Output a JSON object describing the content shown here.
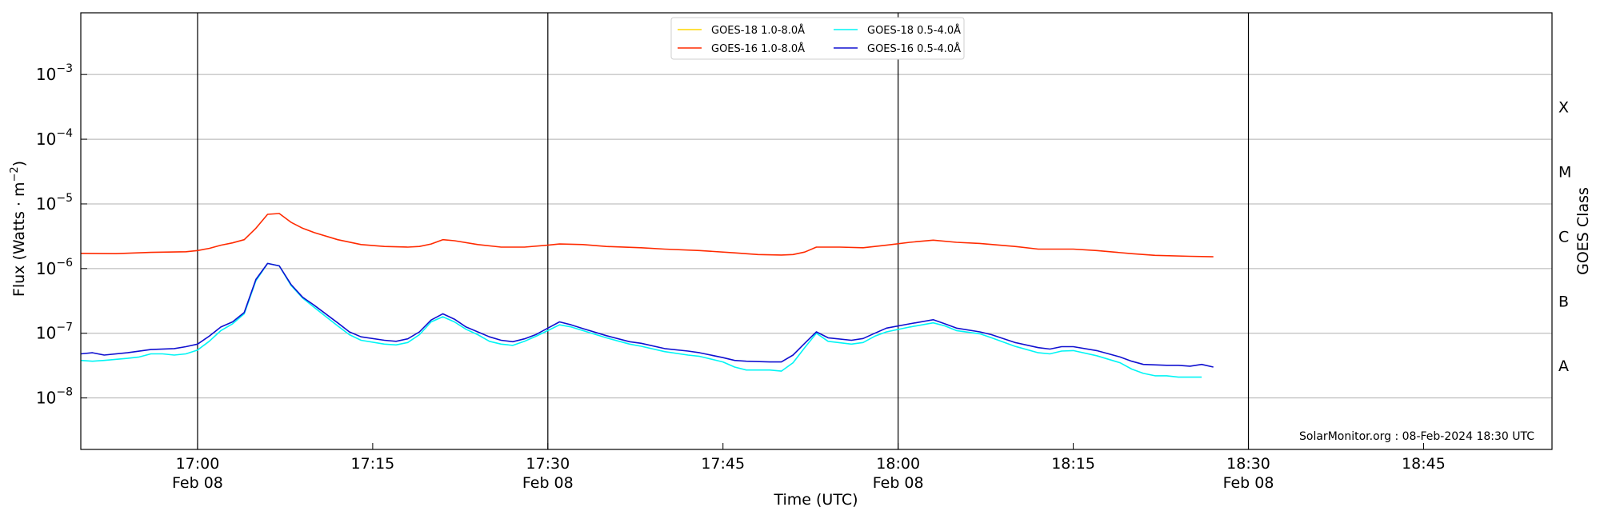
{
  "chart_data": {
    "type": "line",
    "title": "",
    "xlabel": "Time (UTC)",
    "ylabel": "Flux (Watts · m⁻²)",
    "y2label": "GOES Class",
    "yscale": "log",
    "ylim": [
      1.6e-09,
      0.009
    ],
    "xlim": [
      "2024-02-08 16:50",
      "2024-02-08 18:56"
    ],
    "grid": "horizontal",
    "legend_position": "top-center",
    "x_ticks": [
      {
        "time": "2024-02-08 17:00",
        "label": "17:00",
        "date": "Feb 08"
      },
      {
        "time": "2024-02-08 17:15",
        "label": "17:15",
        "date": ""
      },
      {
        "time": "2024-02-08 17:30",
        "label": "17:30",
        "date": "Feb 08"
      },
      {
        "time": "2024-02-08 17:45",
        "label": "17:45",
        "date": ""
      },
      {
        "time": "2024-02-08 18:00",
        "label": "18:00",
        "date": "Feb 08"
      },
      {
        "time": "2024-02-08 18:15",
        "label": "18:15",
        "date": ""
      },
      {
        "time": "2024-02-08 18:30",
        "label": "18:30",
        "date": "Feb 08"
      },
      {
        "time": "2024-02-08 18:45",
        "label": "18:45",
        "date": ""
      }
    ],
    "vertical_lines": [
      "2024-02-08 17:00",
      "2024-02-08 17:30",
      "2024-02-08 18:00",
      "2024-02-08 18:30"
    ],
    "y_ticks": [
      {
        "value": 1e-08,
        "base": "10",
        "exp": "−8"
      },
      {
        "value": 1e-07,
        "base": "10",
        "exp": "−7"
      },
      {
        "value": 1e-06,
        "base": "10",
        "exp": "−6"
      },
      {
        "value": 1e-05,
        "base": "10",
        "exp": "−5"
      },
      {
        "value": 0.0001,
        "base": "10",
        "exp": "−4"
      },
      {
        "value": 0.001,
        "base": "10",
        "exp": "−3"
      }
    ],
    "class_labels": [
      {
        "label": "A",
        "value": 3.16e-08
      },
      {
        "label": "B",
        "value": 3.16e-07
      },
      {
        "label": "C",
        "value": 3.16e-06
      },
      {
        "label": "M",
        "value": 3.16e-05
      },
      {
        "label": "X",
        "value": 0.000316
      }
    ],
    "annotation": "SolarMonitor.org : 08-Feb-2024 18:30 UTC",
    "series": [
      {
        "name": "GOES-18 1.0-8.0Å",
        "color": "#ffd700",
        "points": []
      },
      {
        "name": "GOES-16 1.0-8.0Å",
        "color": "#ff2a00",
        "points": [
          [
            "2024-02-08 16:50",
            1.72e-06
          ],
          [
            "2024-02-08 16:53",
            1.7e-06
          ],
          [
            "2024-02-08 16:56",
            1.78e-06
          ],
          [
            "2024-02-08 16:59",
            1.82e-06
          ],
          [
            "2024-02-08 17:00",
            1.9e-06
          ],
          [
            "2024-02-08 17:01",
            2.05e-06
          ],
          [
            "2024-02-08 17:02",
            2.3e-06
          ],
          [
            "2024-02-08 17:03",
            2.5e-06
          ],
          [
            "2024-02-08 17:04",
            2.8e-06
          ],
          [
            "2024-02-08 17:05",
            4.2e-06
          ],
          [
            "2024-02-08 17:06",
            6.9e-06
          ],
          [
            "2024-02-08 17:07",
            7.1e-06
          ],
          [
            "2024-02-08 17:08",
            5.2e-06
          ],
          [
            "2024-02-08 17:09",
            4.2e-06
          ],
          [
            "2024-02-08 17:10",
            3.6e-06
          ],
          [
            "2024-02-08 17:12",
            2.8e-06
          ],
          [
            "2024-02-08 17:14",
            2.35e-06
          ],
          [
            "2024-02-08 17:16",
            2.2e-06
          ],
          [
            "2024-02-08 17:18",
            2.15e-06
          ],
          [
            "2024-02-08 17:19",
            2.2e-06
          ],
          [
            "2024-02-08 17:20",
            2.4e-06
          ],
          [
            "2024-02-08 17:21",
            2.8e-06
          ],
          [
            "2024-02-08 17:22",
            2.7e-06
          ],
          [
            "2024-02-08 17:24",
            2.35e-06
          ],
          [
            "2024-02-08 17:26",
            2.15e-06
          ],
          [
            "2024-02-08 17:28",
            2.15e-06
          ],
          [
            "2024-02-08 17:30",
            2.3e-06
          ],
          [
            "2024-02-08 17:31",
            2.4e-06
          ],
          [
            "2024-02-08 17:33",
            2.35e-06
          ],
          [
            "2024-02-08 17:35",
            2.2e-06
          ],
          [
            "2024-02-08 17:38",
            2.1e-06
          ],
          [
            "2024-02-08 17:40",
            2e-06
          ],
          [
            "2024-02-08 17:43",
            1.9e-06
          ],
          [
            "2024-02-08 17:46",
            1.75e-06
          ],
          [
            "2024-02-08 17:48",
            1.65e-06
          ],
          [
            "2024-02-08 17:50",
            1.62e-06
          ],
          [
            "2024-02-08 17:51",
            1.65e-06
          ],
          [
            "2024-02-08 17:52",
            1.8e-06
          ],
          [
            "2024-02-08 17:53",
            2.15e-06
          ],
          [
            "2024-02-08 17:55",
            2.15e-06
          ],
          [
            "2024-02-08 17:57",
            2.1e-06
          ],
          [
            "2024-02-08 17:59",
            2.3e-06
          ],
          [
            "2024-02-08 18:01",
            2.55e-06
          ],
          [
            "2024-02-08 18:03",
            2.75e-06
          ],
          [
            "2024-02-08 18:05",
            2.55e-06
          ],
          [
            "2024-02-08 18:07",
            2.45e-06
          ],
          [
            "2024-02-08 18:10",
            2.2e-06
          ],
          [
            "2024-02-08 18:12",
            2e-06
          ],
          [
            "2024-02-08 18:15",
            2e-06
          ],
          [
            "2024-02-08 18:17",
            1.9e-06
          ],
          [
            "2024-02-08 18:20",
            1.7e-06
          ],
          [
            "2024-02-08 18:22",
            1.6e-06
          ],
          [
            "2024-02-08 18:25",
            1.55e-06
          ],
          [
            "2024-02-08 18:27",
            1.52e-06
          ]
        ]
      },
      {
        "name": "GOES-18 0.5-4.0Å",
        "color": "#00f5f5",
        "points": [
          [
            "2024-02-08 16:50",
            3.8e-08
          ],
          [
            "2024-02-08 16:51",
            3.7e-08
          ],
          [
            "2024-02-08 16:52",
            3.8e-08
          ],
          [
            "2024-02-08 16:54",
            4.1e-08
          ],
          [
            "2024-02-08 16:55",
            4.3e-08
          ],
          [
            "2024-02-08 16:56",
            4.8e-08
          ],
          [
            "2024-02-08 16:57",
            4.8e-08
          ],
          [
            "2024-02-08 16:58",
            4.6e-08
          ],
          [
            "2024-02-08 16:59",
            4.8e-08
          ],
          [
            "2024-02-08 17:00",
            5.5e-08
          ],
          [
            "2024-02-08 17:01",
            7.5e-08
          ],
          [
            "2024-02-08 17:02",
            1.1e-07
          ],
          [
            "2024-02-08 17:03",
            1.4e-07
          ],
          [
            "2024-02-08 17:04",
            2e-07
          ],
          [
            "2024-02-08 17:05",
            6.5e-07
          ],
          [
            "2024-02-08 17:06",
            1.2e-06
          ],
          [
            "2024-02-08 17:07",
            1.1e-06
          ],
          [
            "2024-02-08 17:08",
            5.5e-07
          ],
          [
            "2024-02-08 17:09",
            3.5e-07
          ],
          [
            "2024-02-08 17:10",
            2.5e-07
          ],
          [
            "2024-02-08 17:12",
            1.3e-07
          ],
          [
            "2024-02-08 17:13",
            9.5e-08
          ],
          [
            "2024-02-08 17:14",
            7.8e-08
          ],
          [
            "2024-02-08 17:16",
            6.8e-08
          ],
          [
            "2024-02-08 17:17",
            6.6e-08
          ],
          [
            "2024-02-08 17:18",
            7.2e-08
          ],
          [
            "2024-02-08 17:19",
            9.5e-08
          ],
          [
            "2024-02-08 17:20",
            1.5e-07
          ],
          [
            "2024-02-08 17:21",
            1.8e-07
          ],
          [
            "2024-02-08 17:22",
            1.5e-07
          ],
          [
            "2024-02-08 17:23",
            1.15e-07
          ],
          [
            "2024-02-08 17:24",
            9.5e-08
          ],
          [
            "2024-02-08 17:25",
            7.5e-08
          ],
          [
            "2024-02-08 17:26",
            6.8e-08
          ],
          [
            "2024-02-08 17:27",
            6.5e-08
          ],
          [
            "2024-02-08 17:28",
            7.5e-08
          ],
          [
            "2024-02-08 17:29",
            9e-08
          ],
          [
            "2024-02-08 17:30",
            1.1e-07
          ],
          [
            "2024-02-08 17:31",
            1.35e-07
          ],
          [
            "2024-02-08 17:32",
            1.25e-07
          ],
          [
            "2024-02-08 17:33",
            1.1e-07
          ],
          [
            "2024-02-08 17:35",
            8.5e-08
          ],
          [
            "2024-02-08 17:37",
            6.8e-08
          ],
          [
            "2024-02-08 17:38",
            6.3e-08
          ],
          [
            "2024-02-08 17:40",
            5.2e-08
          ],
          [
            "2024-02-08 17:42",
            4.6e-08
          ],
          [
            "2024-02-08 17:43",
            4.4e-08
          ],
          [
            "2024-02-08 17:45",
            3.6e-08
          ],
          [
            "2024-02-08 17:46",
            3e-08
          ],
          [
            "2024-02-08 17:47",
            2.7e-08
          ],
          [
            "2024-02-08 17:49",
            2.7e-08
          ],
          [
            "2024-02-08 17:50",
            2.6e-08
          ],
          [
            "2024-02-08 17:51",
            3.5e-08
          ],
          [
            "2024-02-08 17:52",
            6e-08
          ],
          [
            "2024-02-08 17:53",
            1e-07
          ],
          [
            "2024-02-08 17:54",
            7.5e-08
          ],
          [
            "2024-02-08 17:56",
            6.8e-08
          ],
          [
            "2024-02-08 17:57",
            7.2e-08
          ],
          [
            "2024-02-08 17:58",
            9e-08
          ],
          [
            "2024-02-08 17:59",
            1.05e-07
          ],
          [
            "2024-02-08 18:01",
            1.25e-07
          ],
          [
            "2024-02-08 18:03",
            1.45e-07
          ],
          [
            "2024-02-08 18:04",
            1.3e-07
          ],
          [
            "2024-02-08 18:05",
            1.1e-07
          ],
          [
            "2024-02-08 18:07",
            9.8e-08
          ],
          [
            "2024-02-08 18:08",
            8.5e-08
          ],
          [
            "2024-02-08 18:10",
            6.3e-08
          ],
          [
            "2024-02-08 18:12",
            5e-08
          ],
          [
            "2024-02-08 18:13",
            4.8e-08
          ],
          [
            "2024-02-08 18:14",
            5.3e-08
          ],
          [
            "2024-02-08 18:15",
            5.4e-08
          ],
          [
            "2024-02-08 18:17",
            4.5e-08
          ],
          [
            "2024-02-08 18:19",
            3.5e-08
          ],
          [
            "2024-02-08 18:20",
            2.8e-08
          ],
          [
            "2024-02-08 18:21",
            2.4e-08
          ],
          [
            "2024-02-08 18:22",
            2.2e-08
          ],
          [
            "2024-02-08 18:23",
            2.2e-08
          ],
          [
            "2024-02-08 18:24",
            2.1e-08
          ],
          [
            "2024-02-08 18:26",
            2.1e-08
          ]
        ]
      },
      {
        "name": "GOES-16 0.5-4.0Å",
        "color": "#1010d0",
        "points": [
          [
            "2024-02-08 16:50",
            4.8e-08
          ],
          [
            "2024-02-08 16:51",
            5e-08
          ],
          [
            "2024-02-08 16:52",
            4.6e-08
          ],
          [
            "2024-02-08 16:54",
            5e-08
          ],
          [
            "2024-02-08 16:56",
            5.6e-08
          ],
          [
            "2024-02-08 16:58",
            5.8e-08
          ],
          [
            "2024-02-08 16:59",
            6.2e-08
          ],
          [
            "2024-02-08 17:00",
            6.8e-08
          ],
          [
            "2024-02-08 17:01",
            9e-08
          ],
          [
            "2024-02-08 17:02",
            1.25e-07
          ],
          [
            "2024-02-08 17:03",
            1.5e-07
          ],
          [
            "2024-02-08 17:04",
            2.1e-07
          ],
          [
            "2024-02-08 17:05",
            6.8e-07
          ],
          [
            "2024-02-08 17:06",
            1.2e-06
          ],
          [
            "2024-02-08 17:07",
            1.1e-06
          ],
          [
            "2024-02-08 17:08",
            5.7e-07
          ],
          [
            "2024-02-08 17:09",
            3.6e-07
          ],
          [
            "2024-02-08 17:10",
            2.7e-07
          ],
          [
            "2024-02-08 17:12",
            1.45e-07
          ],
          [
            "2024-02-08 17:13",
            1.05e-07
          ],
          [
            "2024-02-08 17:14",
            8.8e-08
          ],
          [
            "2024-02-08 17:16",
            7.8e-08
          ],
          [
            "2024-02-08 17:17",
            7.5e-08
          ],
          [
            "2024-02-08 17:18",
            8.2e-08
          ],
          [
            "2024-02-08 17:19",
            1.05e-07
          ],
          [
            "2024-02-08 17:20",
            1.6e-07
          ],
          [
            "2024-02-08 17:21",
            2e-07
          ],
          [
            "2024-02-08 17:22",
            1.65e-07
          ],
          [
            "2024-02-08 17:23",
            1.25e-07
          ],
          [
            "2024-02-08 17:24",
            1.05e-07
          ],
          [
            "2024-02-08 17:25",
            8.8e-08
          ],
          [
            "2024-02-08 17:26",
            7.8e-08
          ],
          [
            "2024-02-08 17:27",
            7.4e-08
          ],
          [
            "2024-02-08 17:28",
            8.2e-08
          ],
          [
            "2024-02-08 17:29",
            9.6e-08
          ],
          [
            "2024-02-08 17:30",
            1.2e-07
          ],
          [
            "2024-02-08 17:31",
            1.5e-07
          ],
          [
            "2024-02-08 17:32",
            1.35e-07
          ],
          [
            "2024-02-08 17:33",
            1.18e-07
          ],
          [
            "2024-02-08 17:35",
            9.2e-08
          ],
          [
            "2024-02-08 17:37",
            7.4e-08
          ],
          [
            "2024-02-08 17:38",
            7e-08
          ],
          [
            "2024-02-08 17:40",
            5.8e-08
          ],
          [
            "2024-02-08 17:42",
            5.3e-08
          ],
          [
            "2024-02-08 17:43",
            5e-08
          ],
          [
            "2024-02-08 17:45",
            4.2e-08
          ],
          [
            "2024-02-08 17:46",
            3.8e-08
          ],
          [
            "2024-02-08 17:47",
            3.7e-08
          ],
          [
            "2024-02-08 17:49",
            3.6e-08
          ],
          [
            "2024-02-08 17:50",
            3.6e-08
          ],
          [
            "2024-02-08 17:51",
            4.6e-08
          ],
          [
            "2024-02-08 17:52",
            7e-08
          ],
          [
            "2024-02-08 17:53",
            1.05e-07
          ],
          [
            "2024-02-08 17:54",
            8.5e-08
          ],
          [
            "2024-02-08 17:56",
            7.8e-08
          ],
          [
            "2024-02-08 17:57",
            8.3e-08
          ],
          [
            "2024-02-08 17:58",
            1e-07
          ],
          [
            "2024-02-08 17:59",
            1.2e-07
          ],
          [
            "2024-02-08 18:01",
            1.4e-07
          ],
          [
            "2024-02-08 18:03",
            1.62e-07
          ],
          [
            "2024-02-08 18:04",
            1.4e-07
          ],
          [
            "2024-02-08 18:05",
            1.2e-07
          ],
          [
            "2024-02-08 18:07",
            1.05e-07
          ],
          [
            "2024-02-08 18:08",
            9.5e-08
          ],
          [
            "2024-02-08 18:10",
            7.2e-08
          ],
          [
            "2024-02-08 18:12",
            6e-08
          ],
          [
            "2024-02-08 18:13",
            5.7e-08
          ],
          [
            "2024-02-08 18:14",
            6.2e-08
          ],
          [
            "2024-02-08 18:15",
            6.2e-08
          ],
          [
            "2024-02-08 18:17",
            5.4e-08
          ],
          [
            "2024-02-08 18:19",
            4.3e-08
          ],
          [
            "2024-02-08 18:20",
            3.7e-08
          ],
          [
            "2024-02-08 18:21",
            3.3e-08
          ],
          [
            "2024-02-08 18:23",
            3.2e-08
          ],
          [
            "2024-02-08 18:24",
            3.2e-08
          ],
          [
            "2024-02-08 18:25",
            3.1e-08
          ],
          [
            "2024-02-08 18:26",
            3.3e-08
          ],
          [
            "2024-02-08 18:27",
            3e-08
          ]
        ]
      }
    ]
  }
}
